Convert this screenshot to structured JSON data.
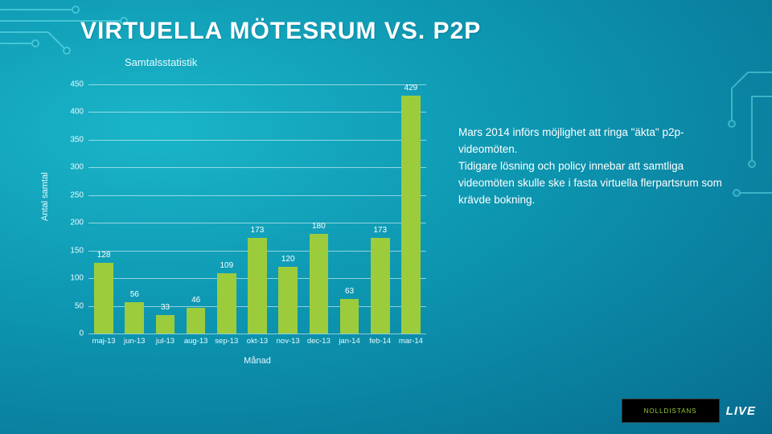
{
  "title": "VIRTUELLA MÖTESRUM VS. P2P",
  "subtitle": "Samtalsstatistik",
  "note_line1": "Mars 2014 införs möjlighet att ringa \"äkta\" p2p-videomöten.",
  "note_line2": "Tidigare lösning och policy innebar att samtliga videomöten skulle ske i fasta virtuella flerpartsrum som krävde bokning.",
  "chart": {
    "type": "bar",
    "categories": [
      "maj-13",
      "jun-13",
      "jul-13",
      "aug-13",
      "sep-13",
      "okt-13",
      "nov-13",
      "dec-13",
      "jan-14",
      "feb-14",
      "mar-14"
    ],
    "values": [
      128,
      56,
      33,
      46,
      109,
      173,
      120,
      180,
      63,
      173,
      429
    ],
    "bar_color": "#9ccc3c",
    "grid_color": "rgba(255,255,255,.55)",
    "label_color": "#e6fbff",
    "ylabel": "Antal samtal",
    "xlabel": "Månad",
    "ylim": [
      0,
      450
    ],
    "ytick_step": 50,
    "bar_width": 0.62,
    "label_fontsize": 11,
    "tick_fontsize": 10,
    "value_fontsize": 10
  },
  "logo": {
    "text": "NOLLDISTANS",
    "live": "LIVE"
  }
}
